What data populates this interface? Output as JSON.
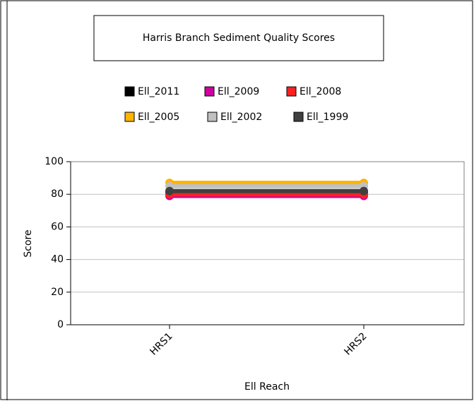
{
  "chart_data": {
    "type": "line",
    "title": "Harris Branch Sediment Quality Scores",
    "x_label": "Ell Reach",
    "y_label": "Score",
    "categories": [
      "HRS1",
      "HRS2"
    ],
    "series": [
      {
        "name": "Ell_2011",
        "color": "#000000",
        "values": [
          81,
          81
        ]
      },
      {
        "name": "Ell_2009",
        "color": "#d000a0",
        "values": [
          79,
          79
        ]
      },
      {
        "name": "Ell_2008",
        "color": "#ff2020",
        "values": [
          80,
          80
        ]
      },
      {
        "name": "Ell_2005",
        "color": "#ffb400",
        "values": [
          87,
          87
        ]
      },
      {
        "name": "Ell_2002",
        "color": "#c0c0c0",
        "values": [
          85,
          85
        ]
      },
      {
        "name": "Ell_1999",
        "color": "#404040",
        "values": [
          82,
          82
        ]
      }
    ],
    "ylim": [
      0,
      100
    ],
    "yticks": [
      0,
      20,
      40,
      60,
      80,
      100
    ],
    "grid": true
  }
}
